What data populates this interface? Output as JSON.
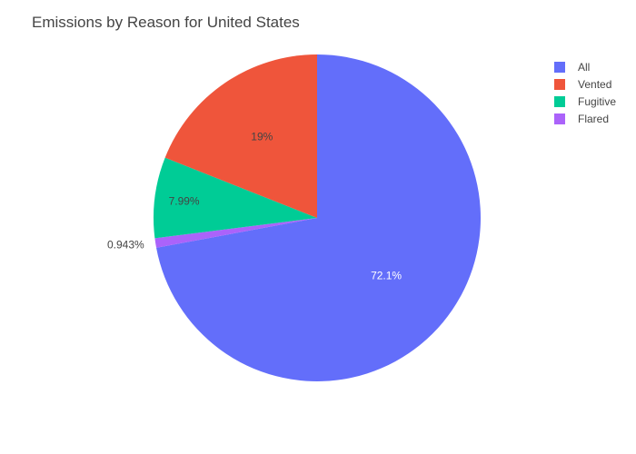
{
  "chart_data": {
    "type": "pie",
    "title": "Emissions by Reason for United States",
    "legend_position": "top-right",
    "slices": [
      {
        "label": "All",
        "percent": 72.1,
        "percent_label": "72.1%",
        "color": "#636efa",
        "label_color": "#ffffff"
      },
      {
        "label": "Flared",
        "percent": 0.943,
        "percent_label": "0.943%",
        "color": "#ab63fa",
        "label_color": "#444444"
      },
      {
        "label": "Fugitive",
        "percent": 7.99,
        "percent_label": "7.99%",
        "color": "#00cc96",
        "label_color": "#444444"
      },
      {
        "label": "Vented",
        "percent": 19.0,
        "percent_label": "19%",
        "color": "#ef553b",
        "label_color": "#444444"
      }
    ],
    "legend_order": [
      "All",
      "Vented",
      "Fugitive",
      "Flared"
    ]
  }
}
